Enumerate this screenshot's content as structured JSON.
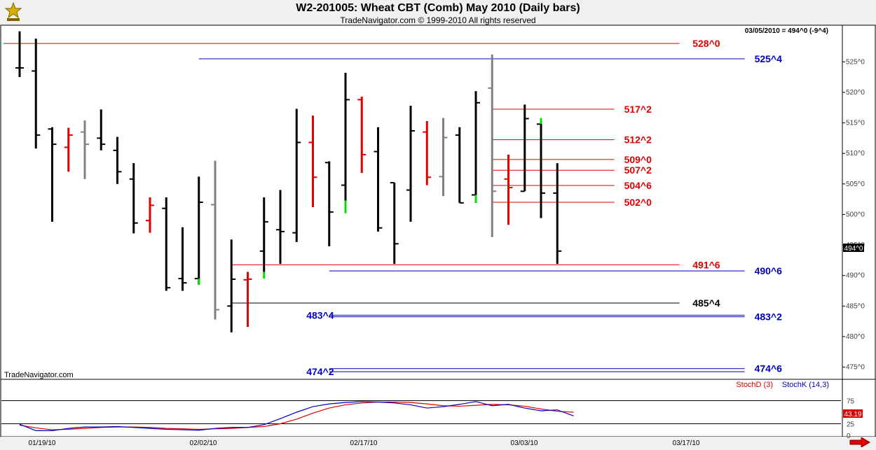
{
  "header": {
    "title": "W2-201005:  Wheat CBT (Comb) May 2010  (Daily bars)",
    "copyright": "TradeNavigator.com © 1999-2010 All rights reserved"
  },
  "watermark": "TradeNavigator.com",
  "last_quote": "03/05/2010 = 494^0 (-9^4)",
  "current_price_label": "494^0",
  "stoch_legend": {
    "d": "StochD (3)",
    "k": "StochK (14,3)"
  },
  "stoch_value_label": "43.19",
  "colors": {
    "red": "#e00000",
    "blue": "#0000c0",
    "black": "#000000",
    "gray": "#808080",
    "green": "#00e000"
  },
  "chart_data": {
    "type": "bar",
    "subtype": "ohlc",
    "x": [
      "01/19/10",
      "02/02/10",
      "02/17/10",
      "03/03/10",
      "03/17/10"
    ],
    "ylim": [
      473,
      531
    ],
    "yticks": [
      {
        "v": 525,
        "label": "525^0"
      },
      {
        "v": 520,
        "label": "520^0"
      },
      {
        "v": 515,
        "label": "515^0"
      },
      {
        "v": 510,
        "label": "510^0"
      },
      {
        "v": 505,
        "label": "505^0"
      },
      {
        "v": 500,
        "label": "500^0"
      },
      {
        "v": 495,
        "label": "495^0"
      },
      {
        "v": 490,
        "label": "490^0"
      },
      {
        "v": 485,
        "label": "485^0"
      },
      {
        "v": 480,
        "label": "480^0"
      },
      {
        "v": 475,
        "label": "475^0"
      }
    ],
    "bars": [
      {
        "d": 0,
        "o": 524,
        "h": 530,
        "l": 522.5,
        "c": 524,
        "color": "black"
      },
      {
        "d": 1,
        "o": 523.5,
        "h": 528.8,
        "l": 510.8,
        "c": 513,
        "color": "black"
      },
      {
        "d": 2,
        "o": 514,
        "h": 514.3,
        "l": 498.8,
        "c": 511.5,
        "color": "black"
      },
      {
        "d": 3,
        "o": 511,
        "h": 514.2,
        "l": 507,
        "c": 513,
        "color": "red"
      },
      {
        "d": 4,
        "o": 513.5,
        "h": 515.4,
        "l": 505.8,
        "c": 511.5,
        "color": "gray"
      },
      {
        "d": 5,
        "o": 512.5,
        "h": 517.2,
        "l": 510.5,
        "c": 511.5,
        "color": "black"
      },
      {
        "d": 6,
        "o": 510.5,
        "h": 512.7,
        "l": 505,
        "c": 507,
        "color": "black"
      },
      {
        "d": 7,
        "o": 505.8,
        "h": 508.4,
        "l": 496.9,
        "c": 498.6,
        "color": "black"
      },
      {
        "d": 8,
        "o": 499,
        "h": 502.8,
        "l": 497,
        "c": 501.5,
        "color": "red"
      },
      {
        "d": 9,
        "o": 501,
        "h": 502.8,
        "l": 487.5,
        "c": 488,
        "color": "black"
      },
      {
        "d": 10,
        "o": 489.5,
        "h": 497.9,
        "l": 487.5,
        "c": 488.8,
        "color": "black"
      },
      {
        "d": 11,
        "o": 489.5,
        "h": 506.2,
        "l": 488.5,
        "c": 502,
        "color": "black"
      },
      {
        "d": 12,
        "o": 501.6,
        "h": 508.8,
        "l": 482.8,
        "c": 484.4,
        "color": "gray"
      },
      {
        "d": 13,
        "o": 485,
        "h": 495.9,
        "l": 480.7,
        "c": 489.4,
        "color": "black"
      },
      {
        "d": 14,
        "o": 489.3,
        "h": 490.6,
        "l": 481.6,
        "c": 489.4,
        "color": "red"
      },
      {
        "d": 15,
        "o": 494,
        "h": 502.8,
        "l": 490.6,
        "c": 498.8,
        "color": "black"
      },
      {
        "d": 16,
        "o": 497.5,
        "h": 504,
        "l": 491.9,
        "c": 497.2,
        "color": "black"
      },
      {
        "d": 17,
        "o": 497,
        "h": 517.3,
        "l": 495.5,
        "c": 511.8,
        "color": "black"
      },
      {
        "d": 18,
        "o": 511.8,
        "h": 516.2,
        "l": 501.2,
        "c": 506.1,
        "color": "red"
      },
      {
        "d": 19,
        "o": 508.5,
        "h": 508.7,
        "l": 494.8,
        "c": 500.4,
        "color": "black"
      },
      {
        "d": 20,
        "o": 504.8,
        "h": 523.2,
        "l": 502.2,
        "c": 518.8,
        "color": "black"
      },
      {
        "d": 21,
        "o": 518.8,
        "h": 519.3,
        "l": 506.8,
        "c": 509.8,
        "color": "red"
      },
      {
        "d": 22,
        "o": 510.3,
        "h": 514.3,
        "l": 497.2,
        "c": 497.8,
        "color": "black"
      },
      {
        "d": 23,
        "o": 505.2,
        "h": 505.2,
        "l": 491.9,
        "c": 495.2,
        "color": "black"
      },
      {
        "d": 24,
        "o": 504,
        "h": 517.8,
        "l": 498.8,
        "c": 513.7,
        "color": "black"
      },
      {
        "d": 25,
        "o": 513.5,
        "h": 515.3,
        "l": 504.8,
        "c": 506.1,
        "color": "red"
      },
      {
        "d": 26,
        "o": 506.2,
        "h": 515.8,
        "l": 503,
        "c": 512.6,
        "color": "gray"
      },
      {
        "d": 27,
        "o": 513,
        "h": 514.3,
        "l": 501.9,
        "c": 501.9,
        "color": "black"
      },
      {
        "d": 28,
        "o": 503.2,
        "h": 520.2,
        "l": 501.9,
        "c": 518.3,
        "color": "black"
      },
      {
        "d": 29,
        "o": 520.7,
        "h": 526.2,
        "l": 496.3,
        "c": 503.8,
        "color": "gray"
      },
      {
        "d": 30,
        "o": 505.8,
        "h": 509.8,
        "l": 498.3,
        "c": 504.4,
        "color": "red"
      },
      {
        "d": 31,
        "o": 503.8,
        "h": 518,
        "l": 503.8,
        "c": 515.7,
        "color": "black"
      },
      {
        "d": 32,
        "o": 514.8,
        "h": 515.7,
        "l": 499.4,
        "c": 503.5,
        "color": "black"
      },
      {
        "d": 33,
        "o": 503.5,
        "h": 508.4,
        "l": 491.9,
        "c": 494,
        "color": "black"
      }
    ],
    "green_marks": [
      {
        "d": 11,
        "top": 489.5,
        "bottom": 488.5
      },
      {
        "d": 15,
        "top": 490.6,
        "bottom": 489.5
      },
      {
        "d": 20,
        "top": 502.3,
        "bottom": 500.2
      },
      {
        "d": 28,
        "top": 503.2,
        "bottom": 501.9
      },
      {
        "d": 32,
        "top": 515.8,
        "bottom": 514.8
      }
    ],
    "levels": [
      {
        "value": 528,
        "label": "528^0",
        "color": "red",
        "from_day": -1,
        "to_day": 40.5,
        "label_day": 41.3
      },
      {
        "value": 525.5,
        "label": "525^4",
        "color": "blue",
        "from_day": 11,
        "to_day": 44.5,
        "label_day": 45.1
      },
      {
        "value": 517.25,
        "label": "517^2",
        "color": "red",
        "from_day": 29,
        "to_day": 36.5,
        "label_day": 37.1
      },
      {
        "value": 512.25,
        "label": "512^2",
        "color": "red",
        "from_day": 29,
        "to_day": 36.5,
        "label_day": 37.1
      },
      {
        "value": 509,
        "label": "509^0",
        "color": "red",
        "from_day": 29,
        "to_day": 36.5,
        "label_day": 37.1
      },
      {
        "value": 507.25,
        "label": "507^2",
        "color": "red",
        "from_day": 29,
        "to_day": 36.5,
        "label_day": 37.1
      },
      {
        "value": 504.75,
        "label": "504^6",
        "color": "red",
        "from_day": 29,
        "to_day": 36.5,
        "label_day": 37.1
      },
      {
        "value": 502.0,
        "label": "502^0",
        "color": "red",
        "from_day": 29,
        "to_day": 36.5,
        "label_day": 37.1
      },
      {
        "value": 491.75,
        "label": "491^6",
        "color": "red",
        "from_day": 13,
        "to_day": 40.5,
        "label_day": 41.3
      },
      {
        "value": 490.75,
        "label": "490^6",
        "color": "blue",
        "from_day": 19,
        "to_day": 44.5,
        "label_day": 45.1
      },
      {
        "value": 485.5,
        "label": "485^4",
        "color": "black",
        "from_day": 13,
        "to_day": 40.5,
        "label_day": 41.3
      },
      {
        "value": 483.5,
        "label": "483^4",
        "color": "blue",
        "from_day": 19,
        "to_day": 44.5,
        "label_day": 17.6
      },
      {
        "value": 483.25,
        "label": "483^2",
        "color": "blue",
        "from_day": 19,
        "to_day": 44.5,
        "label_day": 45.1
      },
      {
        "value": 474.75,
        "label": "474^6",
        "color": "blue",
        "from_day": 19,
        "to_day": 44.5,
        "label_day": 45.1
      },
      {
        "value": 474.25,
        "label": "474^2",
        "color": "blue",
        "from_day": 19,
        "to_day": 44.5,
        "label_day": 17.6
      }
    ],
    "stoch": {
      "ylim": [
        0,
        100
      ],
      "yticks": [
        {
          "v": 75,
          "label": "75"
        },
        {
          "v": 25,
          "label": "25"
        },
        {
          "v": 0,
          "label": "0"
        }
      ],
      "d_values": [
        22,
        16,
        12,
        13,
        15,
        17,
        18,
        18,
        17,
        15,
        14,
        13,
        14,
        15,
        17,
        19,
        25,
        35,
        48,
        59,
        66,
        70,
        72,
        72,
        71,
        68,
        64,
        63,
        65,
        67,
        66,
        63,
        57,
        52,
        50
      ],
      "k_values": [
        24,
        10,
        10,
        15,
        18,
        18,
        19,
        17,
        15,
        13,
        12,
        11,
        15,
        17,
        17,
        23,
        36,
        50,
        62,
        68,
        71,
        73,
        72,
        70,
        66,
        59,
        62,
        67,
        73,
        64,
        67,
        59,
        53,
        55,
        42
      ]
    }
  }
}
